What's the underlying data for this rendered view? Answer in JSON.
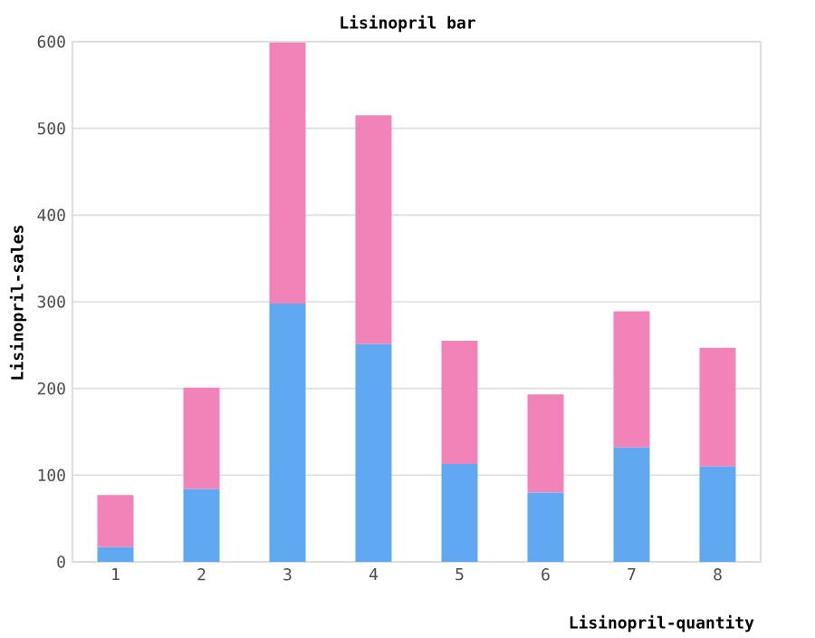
{
  "chart_data": {
    "type": "bar",
    "title": "Lisinopril bar",
    "xlabel": "Lisinopril-quantity",
    "ylabel": "Lisinopril-sales",
    "categories": [
      "1",
      "2",
      "3",
      "4",
      "5",
      "6",
      "7",
      "8"
    ],
    "stacked": true,
    "series": [
      {
        "color": "#60a8f2",
        "values": [
          17,
          84,
          298,
          251,
          113,
          80,
          132,
          110
        ]
      },
      {
        "color": "#f283b8",
        "values": [
          60,
          117,
          301,
          264,
          142,
          113,
          157,
          137
        ]
      }
    ],
    "ylim": [
      0,
      600
    ],
    "yticks": [
      0,
      100,
      200,
      300,
      400,
      500,
      600
    ],
    "grid": "y"
  }
}
